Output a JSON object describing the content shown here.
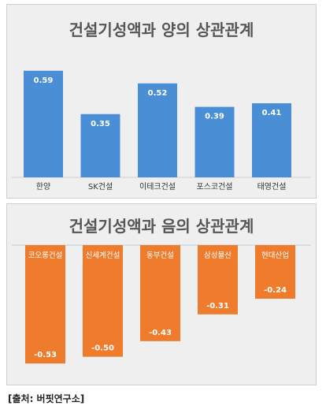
{
  "chart_data": [
    {
      "type": "bar",
      "title": "건설기성액과 양의 상관관계",
      "categories": [
        "한양",
        "SK건설",
        "이테크건설",
        "포스코건설",
        "태영건설"
      ],
      "values": [
        0.59,
        0.35,
        0.52,
        0.39,
        0.41
      ],
      "value_labels": [
        "0.59",
        "0.35",
        "0.52",
        "0.39",
        "0.41"
      ],
      "ylim": [
        0,
        0.65
      ],
      "color": "#4a8fd6",
      "grid": false,
      "legend": "none"
    },
    {
      "type": "bar",
      "title": "건설기성액과 음의 상관관계",
      "categories": [
        "코오롱건설",
        "신세계건설",
        "동부건설",
        "삼성물산",
        "현대산업"
      ],
      "values": [
        -0.53,
        -0.5,
        -0.43,
        -0.31,
        -0.24
      ],
      "value_labels": [
        "-0.53",
        "-0.50",
        "-0.43",
        "-0.31",
        "-0.24"
      ],
      "ylim": [
        -0.6,
        0
      ],
      "color": "#ef7c2c",
      "grid": false,
      "legend": "none"
    }
  ],
  "source": "[출처: 버핏연구소]"
}
